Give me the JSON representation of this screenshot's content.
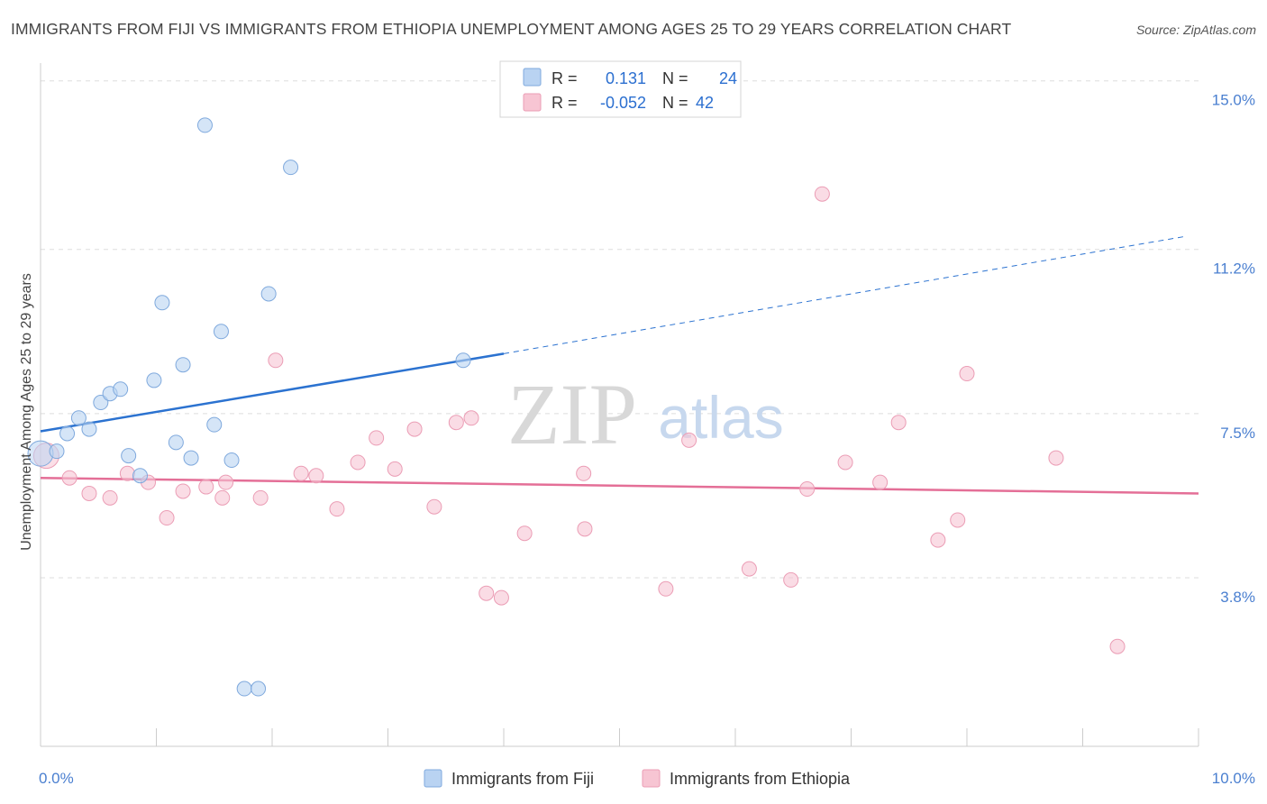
{
  "header": {
    "title": "IMMIGRANTS FROM FIJI VS IMMIGRANTS FROM ETHIOPIA UNEMPLOYMENT AMONG AGES 25 TO 29 YEARS CORRELATION CHART",
    "source": "Source: ZipAtlas.com"
  },
  "watermark": {
    "zip": "ZIP",
    "atlas": "atlas"
  },
  "colors": {
    "fiji_fill": "#b9d3f2",
    "fiji_stroke": "#7fa9dd",
    "fiji_line": "#2b72d0",
    "eth_fill": "#f7c5d3",
    "eth_stroke": "#eb9db5",
    "eth_line": "#e46f97",
    "axis_label": "#4a7fd0",
    "grid": "#dddddd"
  },
  "legend": {
    "rows": [
      {
        "r_label": "R =",
        "r_value": "0.131",
        "n_label": "N =",
        "n_value": "24"
      },
      {
        "r_label": "R =",
        "r_value": "-0.052",
        "n_label": "N =",
        "n_value": "42"
      }
    ]
  },
  "bottom_legend": {
    "fiji": "Immigrants from Fiji",
    "ethiopia": "Immigrants from Ethiopia"
  },
  "chart_data": {
    "type": "scatter",
    "title": "IMMIGRANTS FROM FIJI VS IMMIGRANTS FROM ETHIOPIA UNEMPLOYMENT AMONG AGES 25 TO 29 YEARS CORRELATION CHART",
    "xlabel": "",
    "ylabel": "Unemployment Among Ages 25 to 29 years",
    "xlim": [
      0,
      10
    ],
    "ylim": [
      0,
      15.4
    ],
    "x_tick_labels": [
      {
        "value": 0,
        "label": "0.0%"
      },
      {
        "value": 10,
        "label": "10.0%"
      }
    ],
    "y_tick_labels": [
      {
        "value": 15.0,
        "label": "15.0%"
      },
      {
        "value": 11.2,
        "label": "11.2%"
      },
      {
        "value": 7.5,
        "label": "7.5%"
      },
      {
        "value": 3.8,
        "label": "3.8%"
      }
    ],
    "series": [
      {
        "name": "Immigrants from Fiji",
        "points": [
          [
            0.0,
            6.6
          ],
          [
            0.14,
            6.65
          ],
          [
            0.23,
            7.05
          ],
          [
            0.33,
            7.4
          ],
          [
            0.42,
            7.15
          ],
          [
            0.52,
            7.75
          ],
          [
            0.6,
            7.95
          ],
          [
            0.69,
            8.05
          ],
          [
            0.76,
            6.55
          ],
          [
            0.86,
            6.1
          ],
          [
            0.98,
            8.25
          ],
          [
            1.05,
            10.0
          ],
          [
            1.17,
            6.85
          ],
          [
            1.23,
            8.6
          ],
          [
            1.3,
            6.5
          ],
          [
            1.42,
            14.0
          ],
          [
            1.5,
            7.25
          ],
          [
            1.56,
            9.35
          ],
          [
            1.65,
            6.45
          ],
          [
            1.76,
            1.3
          ],
          [
            1.88,
            1.3
          ],
          [
            1.97,
            10.2
          ],
          [
            2.16,
            13.05
          ],
          [
            3.65,
            8.7
          ]
        ],
        "trend": {
          "x_start": 0,
          "y_start": 7.1,
          "x_solid_end": 4.0,
          "y_solid_end": 8.85,
          "x_end": 9.9,
          "y_end": 11.5
        }
      },
      {
        "name": "Immigrants from Ethiopia",
        "points": [
          [
            0.05,
            6.55
          ],
          [
            0.25,
            6.05
          ],
          [
            0.42,
            5.7
          ],
          [
            0.6,
            5.6
          ],
          [
            0.75,
            6.15
          ],
          [
            0.93,
            5.95
          ],
          [
            1.09,
            5.15
          ],
          [
            1.23,
            5.75
          ],
          [
            1.43,
            5.85
          ],
          [
            1.57,
            5.6
          ],
          [
            1.6,
            5.95
          ],
          [
            1.9,
            5.6
          ],
          [
            2.03,
            8.7
          ],
          [
            2.25,
            6.15
          ],
          [
            2.38,
            6.1
          ],
          [
            2.56,
            5.35
          ],
          [
            2.74,
            6.4
          ],
          [
            2.9,
            6.95
          ],
          [
            3.06,
            6.25
          ],
          [
            3.23,
            7.15
          ],
          [
            3.4,
            5.4
          ],
          [
            3.59,
            7.3
          ],
          [
            3.72,
            7.4
          ],
          [
            3.85,
            3.45
          ],
          [
            3.98,
            3.35
          ],
          [
            4.18,
            4.8
          ],
          [
            4.69,
            6.15
          ],
          [
            4.7,
            4.9
          ],
          [
            5.4,
            3.55
          ],
          [
            5.6,
            6.9
          ],
          [
            6.12,
            4.0
          ],
          [
            6.48,
            3.75
          ],
          [
            6.62,
            5.8
          ],
          [
            6.75,
            12.45
          ],
          [
            6.95,
            6.4
          ],
          [
            7.25,
            5.95
          ],
          [
            7.41,
            7.3
          ],
          [
            7.75,
            4.65
          ],
          [
            7.92,
            5.1
          ],
          [
            8.0,
            8.4
          ],
          [
            8.77,
            6.5
          ],
          [
            9.3,
            2.25
          ]
        ],
        "trend": {
          "x_start": 0,
          "y_start": 6.05,
          "x_end": 10,
          "y_end": 5.7
        }
      }
    ]
  }
}
